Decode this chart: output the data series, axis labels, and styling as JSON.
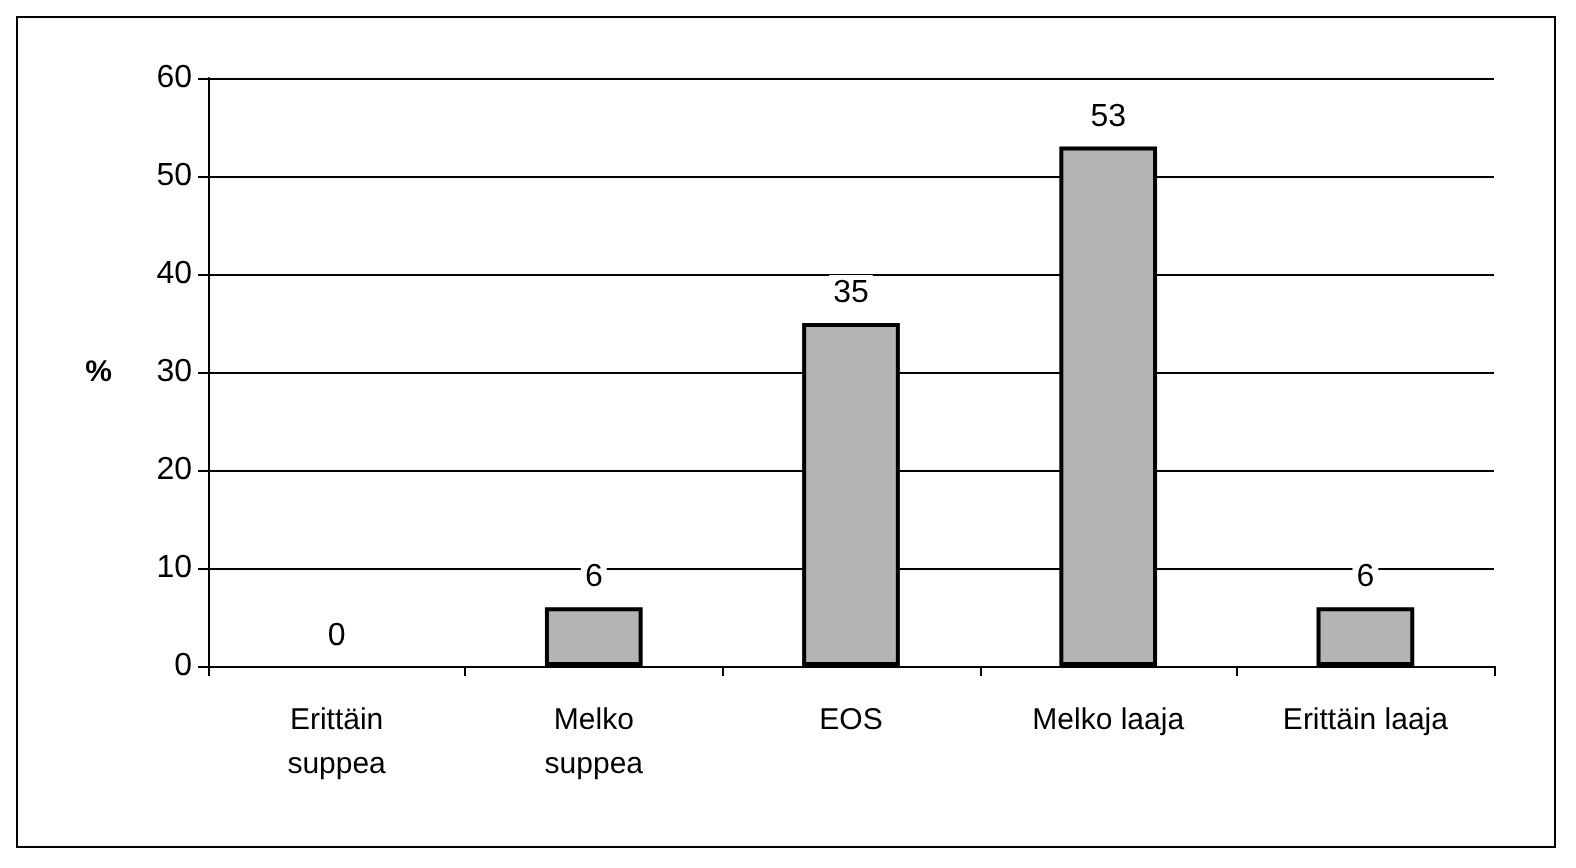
{
  "chart_data": {
    "type": "bar",
    "ylabel": "%",
    "categories": [
      "Erittäin\nsuppea",
      "Melko\nsuppea",
      "EOS",
      "Melko laaja",
      "Erittäin laaja"
    ],
    "values": [
      0,
      6,
      35,
      53,
      6
    ],
    "color": "#b4b4b4",
    "ylim": [
      0,
      60
    ],
    "yticks": [
      0,
      10,
      20,
      30,
      40,
      50,
      60
    ],
    "grid": "y",
    "data_labels": true
  }
}
